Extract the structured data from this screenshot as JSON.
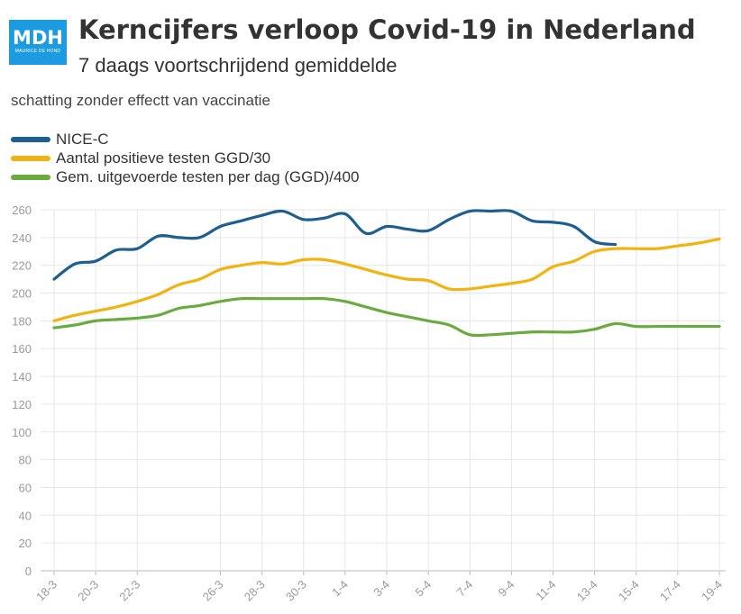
{
  "logo": {
    "text": "MDH",
    "subtext": "MAURICE DE HOND"
  },
  "header": {
    "title": "Kerncijfers verloop Covid-19 in Nederland",
    "subtitle": "7 daags voortschrijdend gemiddelde"
  },
  "note": "schatting zonder effectt van vaccinatie",
  "chart_data": {
    "type": "line",
    "title": "Kerncijfers verloop Covid-19 in Nederland",
    "subtitle": "7 daags voortschrijdend gemiddelde",
    "x": [
      "18-3",
      "19-3",
      "20-3",
      "21-3",
      "22-3",
      "23-3",
      "24-3",
      "25-3",
      "26-3",
      "27-3",
      "28-3",
      "29-3",
      "30-3",
      "31-3",
      "1-4",
      "2-4",
      "3-4",
      "4-4",
      "5-4",
      "6-4",
      "7-4",
      "8-4",
      "9-4",
      "10-4",
      "11-4",
      "12-4",
      "13-4",
      "14-4",
      "15-4",
      "16-4",
      "17-4",
      "18-4",
      "19-4"
    ],
    "x_tick_labels": [
      "18-3",
      "20-3",
      "22-3",
      "26-3",
      "28-3",
      "30-3",
      "1-4",
      "3-4",
      "5-4",
      "7-4",
      "9-4",
      "11-4",
      "13-4",
      "15-4",
      "17-4",
      "19-4"
    ],
    "ylim": [
      0,
      260
    ],
    "y_ticks": [
      0,
      20,
      40,
      60,
      80,
      100,
      120,
      140,
      160,
      180,
      200,
      220,
      240,
      260
    ],
    "grid": true,
    "legend": "top-left",
    "series": [
      {
        "name": "NICE-C",
        "color": "#1f5f8f",
        "values": [
          210,
          221,
          223,
          231,
          232,
          241,
          240,
          240,
          248,
          252,
          256,
          259,
          253,
          254,
          257,
          243,
          248,
          246,
          245,
          253,
          259,
          259,
          259,
          252,
          251,
          248,
          237,
          235,
          null,
          null,
          null,
          null,
          null
        ]
      },
      {
        "name": "Aantal positieve testen GGD/30",
        "color": "#f2b311",
        "values": [
          180,
          184,
          187,
          190,
          194,
          199,
          206,
          210,
          217,
          220,
          222,
          221,
          224,
          224,
          221,
          217,
          213,
          210,
          209,
          203,
          203,
          205,
          207,
          210,
          219,
          223,
          230,
          232,
          232,
          232,
          234,
          236,
          239
        ]
      },
      {
        "name": "Gem. uitgevoerde testen per dag (GGD)/400",
        "color": "#6aab3f",
        "values": [
          175,
          177,
          180,
          181,
          182,
          184,
          189,
          191,
          194,
          196,
          196,
          196,
          196,
          196,
          194,
          190,
          186,
          183,
          180,
          177,
          170,
          170,
          171,
          172,
          172,
          172,
          174,
          178,
          176,
          176,
          176,
          176,
          176
        ]
      }
    ]
  }
}
